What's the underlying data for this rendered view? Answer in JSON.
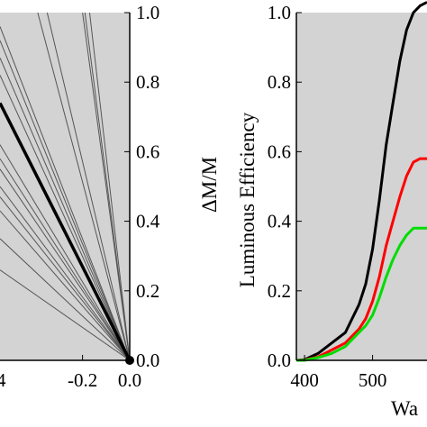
{
  "chart_data": [
    {
      "type": "line",
      "title": "",
      "xlabel": "",
      "ylabel": "ΔM/M",
      "xlim": [
        -0.55,
        0.0
      ],
      "ylim": [
        0.0,
        1.0
      ],
      "x_ticks": [
        "-0.2",
        "0.0"
      ],
      "x_tick_values": [
        -0.2,
        0.0
      ],
      "y_ticks": [
        "0.0",
        "0.2",
        "0.4",
        "0.6",
        "0.8",
        "1.0"
      ],
      "y_tick_values": [
        0.0,
        0.2,
        0.4,
        0.6,
        0.8,
        1.0
      ],
      "x_ticks_partially_visible": [
        "4"
      ],
      "background": "#d3d3d3",
      "origin_point": {
        "x": 0.0,
        "y": 0.0
      },
      "thin_line_endpoints": [
        {
          "x": -0.39,
          "y": 1.0
        },
        {
          "x": -0.35,
          "y": 1.0
        },
        {
          "x": -0.2,
          "y": 1.0
        },
        {
          "x": -0.19,
          "y": 1.0
        },
        {
          "x": -0.17,
          "y": 1.0
        },
        {
          "x": -0.55,
          "y": 0.96
        },
        {
          "x": -0.55,
          "y": 0.92
        },
        {
          "x": -0.55,
          "y": 0.87
        },
        {
          "x": -0.55,
          "y": 0.82
        },
        {
          "x": -0.55,
          "y": 0.62
        },
        {
          "x": -0.55,
          "y": 0.58
        },
        {
          "x": -0.55,
          "y": 0.55
        },
        {
          "x": -0.55,
          "y": 0.5
        },
        {
          "x": -0.55,
          "y": 0.47
        },
        {
          "x": -0.55,
          "y": 0.43
        },
        {
          "x": -0.55,
          "y": 0.35
        },
        {
          "x": -0.55,
          "y": 0.26
        }
      ],
      "thick_line_endpoint": {
        "x": -0.55,
        "y": 0.74
      },
      "colors": {
        "thin": "#555555",
        "thick": "#000000"
      }
    },
    {
      "type": "line",
      "title": "",
      "xlabel": "Wa",
      "ylabel": "Luminous Efficiency",
      "xlim": [
        388,
        580
      ],
      "ylim": [
        0.0,
        1.0
      ],
      "x_ticks": [
        "400",
        "500"
      ],
      "x_tick_values": [
        400,
        500
      ],
      "y_ticks": [
        "0.0",
        "0.2",
        "0.4",
        "0.6",
        "0.8",
        "1.0"
      ],
      "y_tick_values": [
        0.0,
        0.2,
        0.4,
        0.6,
        0.8,
        1.0
      ],
      "background": "#d3d3d3",
      "x": [
        388,
        400,
        420,
        440,
        460,
        470,
        480,
        490,
        500,
        510,
        520,
        530,
        540,
        550,
        560,
        570,
        580
      ],
      "series": [
        {
          "color": "#000000",
          "values": [
            0.0,
            0.002,
            0.02,
            0.05,
            0.08,
            0.12,
            0.16,
            0.22,
            0.32,
            0.46,
            0.62,
            0.74,
            0.86,
            0.95,
            1.0,
            1.02,
            1.03
          ]
        },
        {
          "color": "#ff0000",
          "values": [
            0.0,
            0.001,
            0.01,
            0.03,
            0.05,
            0.07,
            0.09,
            0.12,
            0.17,
            0.24,
            0.33,
            0.4,
            0.47,
            0.53,
            0.57,
            0.58,
            0.58
          ]
        },
        {
          "color": "#00dd00",
          "values": [
            0.0,
            0.0,
            0.008,
            0.02,
            0.04,
            0.06,
            0.08,
            0.1,
            0.13,
            0.18,
            0.24,
            0.29,
            0.33,
            0.36,
            0.38,
            0.38,
            0.38
          ]
        }
      ]
    }
  ]
}
